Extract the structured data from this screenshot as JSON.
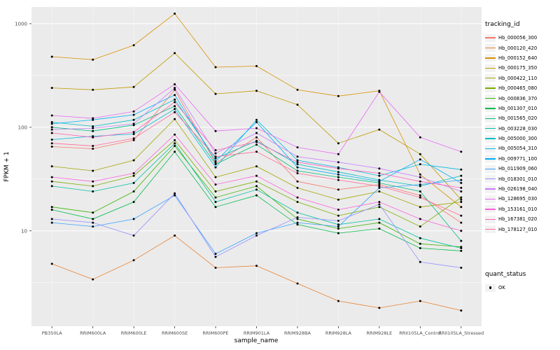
{
  "figure": {
    "panel_bg": "#EBEBEB",
    "grid_major_color": "#FFFFFF",
    "grid_minor_color": "#FFFFFF",
    "tick_color": "#333333",
    "point_color": "#000000"
  },
  "legend": {
    "tracking_title": "tracking_id",
    "quant_title": "quant_status",
    "quant_items": [
      {
        "label": "OK"
      }
    ]
  },
  "chart_data": {
    "type": "line",
    "title": "",
    "xlabel": "sample_name",
    "ylabel": "FPKM + 1",
    "y_scale": "log10",
    "y_ticks": [
      10,
      100,
      1000
    ],
    "y_tick_labels": [
      "10",
      "100",
      "1000"
    ],
    "y_minor_ticks": [
      3.162,
      31.62,
      316.2
    ],
    "y_domain": [
      1.2,
      1450
    ],
    "grid": true,
    "legend_position": "right",
    "points_black": true,
    "categories": [
      "PB350LA",
      "RRIM600LA",
      "RRIM600LE",
      "RRIM600SE",
      "RRIM600PE",
      "RRIM901LA",
      "RRIM928BA",
      "RRIM928LA",
      "RRIM928LE",
      "RRII105LA_Control",
      "RRII105LA_Stressed"
    ],
    "series": [
      {
        "name": "Hb_000056_300",
        "color": "#F8766D",
        "values": [
          65,
          62,
          75,
          230,
          45,
          80,
          30,
          25,
          28,
          22,
          12
        ]
      },
      {
        "name": "Hb_000120_420",
        "color": "#EA8331",
        "values": [
          4.8,
          3.4,
          5.2,
          9,
          4.4,
          4.6,
          3.1,
          2.1,
          1.8,
          2.1,
          1.7
        ]
      },
      {
        "name": "Hb_000152_640",
        "color": "#D89000",
        "values": [
          480,
          450,
          620,
          1250,
          380,
          390,
          230,
          200,
          225,
          35,
          17
        ]
      },
      {
        "name": "Hb_000175_350",
        "color": "#C09B00",
        "values": [
          240,
          230,
          245,
          520,
          210,
          225,
          165,
          70,
          95,
          55,
          20
        ]
      },
      {
        "name": "Hb_000422_110",
        "color": "#A3A500",
        "values": [
          42,
          38,
          48,
          120,
          33,
          42,
          26,
          20,
          24,
          17,
          19
        ]
      },
      {
        "name": "Hb_000465_080",
        "color": "#7CAE00",
        "values": [
          30,
          27,
          34,
          75,
          24,
          30,
          19,
          14,
          17,
          11,
          21
        ]
      },
      {
        "name": "Hb_000836_370",
        "color": "#39B600",
        "values": [
          17,
          15,
          24,
          66,
          21,
          27,
          13,
          10.5,
          12,
          7.5,
          7
        ]
      },
      {
        "name": "Hb_001307_010",
        "color": "#00BB4E",
        "values": [
          16,
          13,
          19,
          58,
          17,
          22,
          11.5,
          9.5,
          10.5,
          6.8,
          6.4
        ]
      },
      {
        "name": "Hb_001565_020",
        "color": "#00BF7D",
        "values": [
          100,
          92,
          105,
          160,
          44,
          68,
          38,
          33,
          29,
          24,
          8
        ]
      },
      {
        "name": "Hb_003228_030",
        "color": "#00C1A3",
        "values": [
          27,
          24,
          29,
          70,
          19,
          25,
          15,
          11.5,
          13,
          8.5,
          6.8
        ]
      },
      {
        "name": "Hb_005000_300",
        "color": "#00BFC4",
        "values": [
          112,
          102,
          118,
          185,
          50,
          74,
          44,
          37,
          31,
          27,
          34
        ]
      },
      {
        "name": "Hb_005054_310",
        "color": "#00BAE0",
        "values": [
          76,
          82,
          86,
          150,
          41,
          118,
          48,
          41,
          34,
          44,
          39
        ]
      },
      {
        "name": "Hb_009771_100",
        "color": "#00B0F6",
        "values": [
          108,
          118,
          132,
          205,
          47,
          112,
          41,
          35,
          30,
          49,
          29
        ]
      },
      {
        "name": "Hb_011909_060",
        "color": "#35A2FF",
        "values": [
          12,
          11,
          13,
          22,
          6,
          9.5,
          12,
          11,
          26,
          28,
          31
        ]
      },
      {
        "name": "Hb_018301_010",
        "color": "#9590FF",
        "values": [
          13,
          12,
          9,
          23,
          5.6,
          9,
          13.5,
          12.5,
          18,
          5,
          4.4
        ]
      },
      {
        "name": "Hb_026198_040",
        "color": "#C77CFF",
        "values": [
          95,
          98,
          108,
          240,
          56,
          88,
          52,
          46,
          40,
          33,
          24
        ]
      },
      {
        "name": "Hb_128695_030",
        "color": "#E76BF3",
        "values": [
          130,
          122,
          142,
          260,
          92,
          98,
          64,
          55,
          220,
          80,
          58
        ]
      },
      {
        "name": "Hb_153161_010",
        "color": "#FA62DB",
        "values": [
          33,
          30,
          36,
          85,
          28,
          34,
          21,
          16,
          19,
          13,
          10
        ]
      },
      {
        "name": "Hb_167381_020",
        "color": "#FF62BC",
        "values": [
          88,
          80,
          90,
          175,
          60,
          72,
          46,
          40,
          36,
          30,
          26
        ]
      },
      {
        "name": "Hb_178127_010",
        "color": "#FF6A98",
        "values": [
          70,
          66,
          78,
          140,
          52,
          58,
          36,
          31,
          27,
          21,
          14
        ]
      }
    ]
  }
}
